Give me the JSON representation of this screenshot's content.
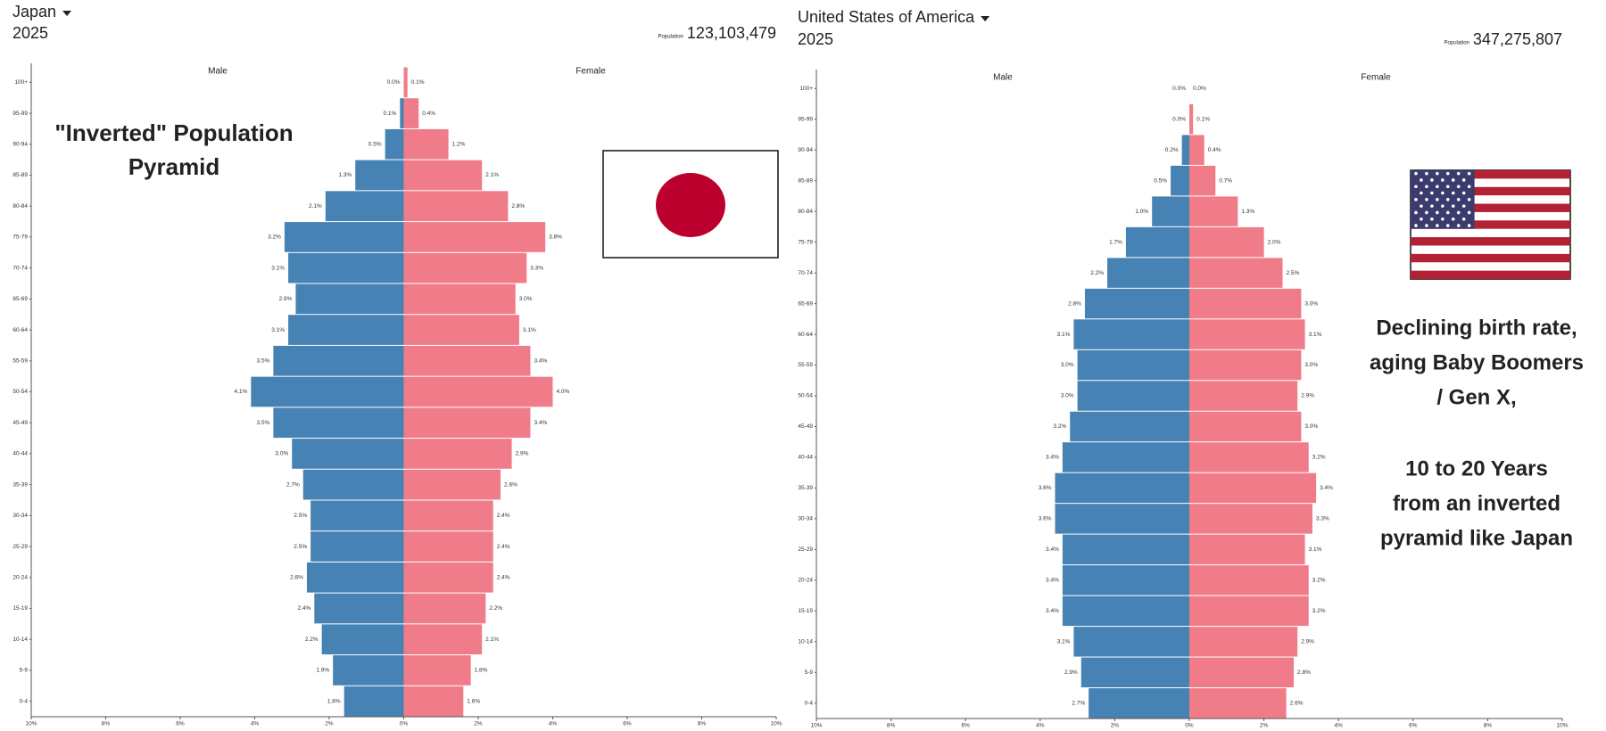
{
  "chart_data": [
    {
      "type": "pyramid",
      "title": "Japan",
      "subtitle": "2025",
      "population_label": "Population",
      "population": "123,103,479",
      "annotation": [
        [
          "\"Inverted\" Population",
          "Pyramid"
        ]
      ],
      "categories": [
        "100+",
        "95-99",
        "90-94",
        "85-89",
        "80-84",
        "75-79",
        "70-74",
        "65-69",
        "60-64",
        "55-59",
        "50-54",
        "45-49",
        "40-44",
        "35-39",
        "30-34",
        "25-29",
        "20-24",
        "15-19",
        "10-14",
        "5-9",
        "0-4"
      ],
      "series": [
        {
          "name": "Male",
          "color": "#4682b4",
          "values": [
            0.0,
            0.1,
            0.5,
            1.3,
            2.1,
            3.2,
            3.1,
            2.9,
            3.1,
            3.5,
            4.1,
            3.5,
            3.0,
            2.7,
            2.5,
            2.5,
            2.6,
            2.4,
            2.2,
            1.9,
            1.6
          ],
          "value_labels": [
            "0.0%",
            "0.1%",
            "0.5%",
            "1.3%",
            "2.1%",
            "3.2%",
            "3.1%",
            "2.9%",
            "3.1%",
            "3.5%",
            "4.1%",
            "3.5%",
            "3.0%",
            "2.7%",
            "2.5%",
            "2.5%",
            "2.6%",
            "2.4%",
            "2.2%",
            "1.9%",
            "1.6%"
          ]
        },
        {
          "name": "Female",
          "color": "#f07c89",
          "values": [
            0.1,
            0.4,
            1.2,
            2.1,
            2.8,
            3.8,
            3.3,
            3.0,
            3.1,
            3.4,
            4.0,
            3.4,
            2.9,
            2.6,
            2.4,
            2.4,
            2.4,
            2.2,
            2.1,
            1.8,
            1.6
          ],
          "value_labels": [
            "0.1%",
            "0.4%",
            "1.2%",
            "2.1%",
            "2.8%",
            "3.8%",
            "3.3%",
            "3.0%",
            "3.1%",
            "3.4%",
            "4.0%",
            "3.4%",
            "2.9%",
            "2.6%",
            "2.4%",
            "2.4%",
            "2.4%",
            "2.2%",
            "2.1%",
            "1.8%",
            "1.6%"
          ]
        }
      ],
      "xlim": [
        -10,
        10
      ],
      "xticks": [
        {
          "value": -10,
          "label": "10%"
        },
        {
          "value": -8,
          "label": "8%"
        },
        {
          "value": -6,
          "label": "6%"
        },
        {
          "value": -4,
          "label": "4%"
        },
        {
          "value": -2,
          "label": "2%"
        },
        {
          "value": 0,
          "label": "0%"
        },
        {
          "value": 2,
          "label": "2%"
        },
        {
          "value": 4,
          "label": "4%"
        },
        {
          "value": 6,
          "label": "6%"
        },
        {
          "value": 8,
          "label": "8%"
        },
        {
          "value": 10,
          "label": "10%"
        }
      ]
    },
    {
      "type": "pyramid",
      "title": "United States of America",
      "subtitle": "2025",
      "population_label": "Population",
      "population": "347,275,807",
      "annotation": [
        [
          "Declining birth rate,",
          "aging Baby Boomers",
          "/ Gen X,"
        ],
        [
          "10 to 20 Years",
          "from an inverted",
          "pyramid like Japan"
        ]
      ],
      "categories": [
        "100+",
        "95-99",
        "90-94",
        "85-89",
        "80-84",
        "75-79",
        "70-74",
        "65-69",
        "60-64",
        "55-59",
        "50-54",
        "45-49",
        "40-44",
        "35-39",
        "30-34",
        "25-29",
        "20-24",
        "15-19",
        "10-14",
        "5-9",
        "0-4"
      ],
      "series": [
        {
          "name": "Male",
          "color": "#4682b4",
          "values": [
            0.0,
            0.0,
            0.2,
            0.5,
            1.0,
            1.7,
            2.2,
            2.8,
            3.1,
            3.0,
            3.0,
            3.2,
            3.4,
            3.6,
            3.6,
            3.4,
            3.4,
            3.4,
            3.1,
            2.9,
            2.7
          ],
          "value_labels": [
            "0.0%",
            "0.0%",
            "0.2%",
            "0.5%",
            "1.0%",
            "1.7%",
            "2.2%",
            "2.8%",
            "3.1%",
            "3.0%",
            "3.0%",
            "3.2%",
            "3.4%",
            "3.6%",
            "3.6%",
            "3.4%",
            "3.4%",
            "3.4%",
            "3.1%",
            "2.9%",
            "2.7%"
          ]
        },
        {
          "name": "Female",
          "color": "#f07c89",
          "values": [
            0.0,
            0.1,
            0.4,
            0.7,
            1.3,
            2.0,
            2.5,
            3.0,
            3.1,
            3.0,
            2.9,
            3.0,
            3.2,
            3.4,
            3.3,
            3.1,
            3.2,
            3.2,
            2.9,
            2.8,
            2.6
          ],
          "value_labels": [
            "0.0%",
            "0.1%",
            "0.4%",
            "0.7%",
            "1.3%",
            "2.0%",
            "2.5%",
            "3.0%",
            "3.1%",
            "3.0%",
            "2.9%",
            "3.0%",
            "3.2%",
            "3.4%",
            "3.3%",
            "3.1%",
            "3.2%",
            "3.2%",
            "2.9%",
            "2.8%",
            "2.6%"
          ]
        }
      ],
      "xlim": [
        -10,
        10
      ],
      "xticks": [
        {
          "value": -10,
          "label": "10%"
        },
        {
          "value": -8,
          "label": "8%"
        },
        {
          "value": -6,
          "label": "6%"
        },
        {
          "value": -4,
          "label": "4%"
        },
        {
          "value": -2,
          "label": "2%"
        },
        {
          "value": 0,
          "label": "0%"
        },
        {
          "value": 2,
          "label": "2%"
        },
        {
          "value": 4,
          "label": "4%"
        },
        {
          "value": 6,
          "label": "6%"
        },
        {
          "value": 8,
          "label": "8%"
        },
        {
          "value": 10,
          "label": "10%"
        }
      ]
    }
  ]
}
